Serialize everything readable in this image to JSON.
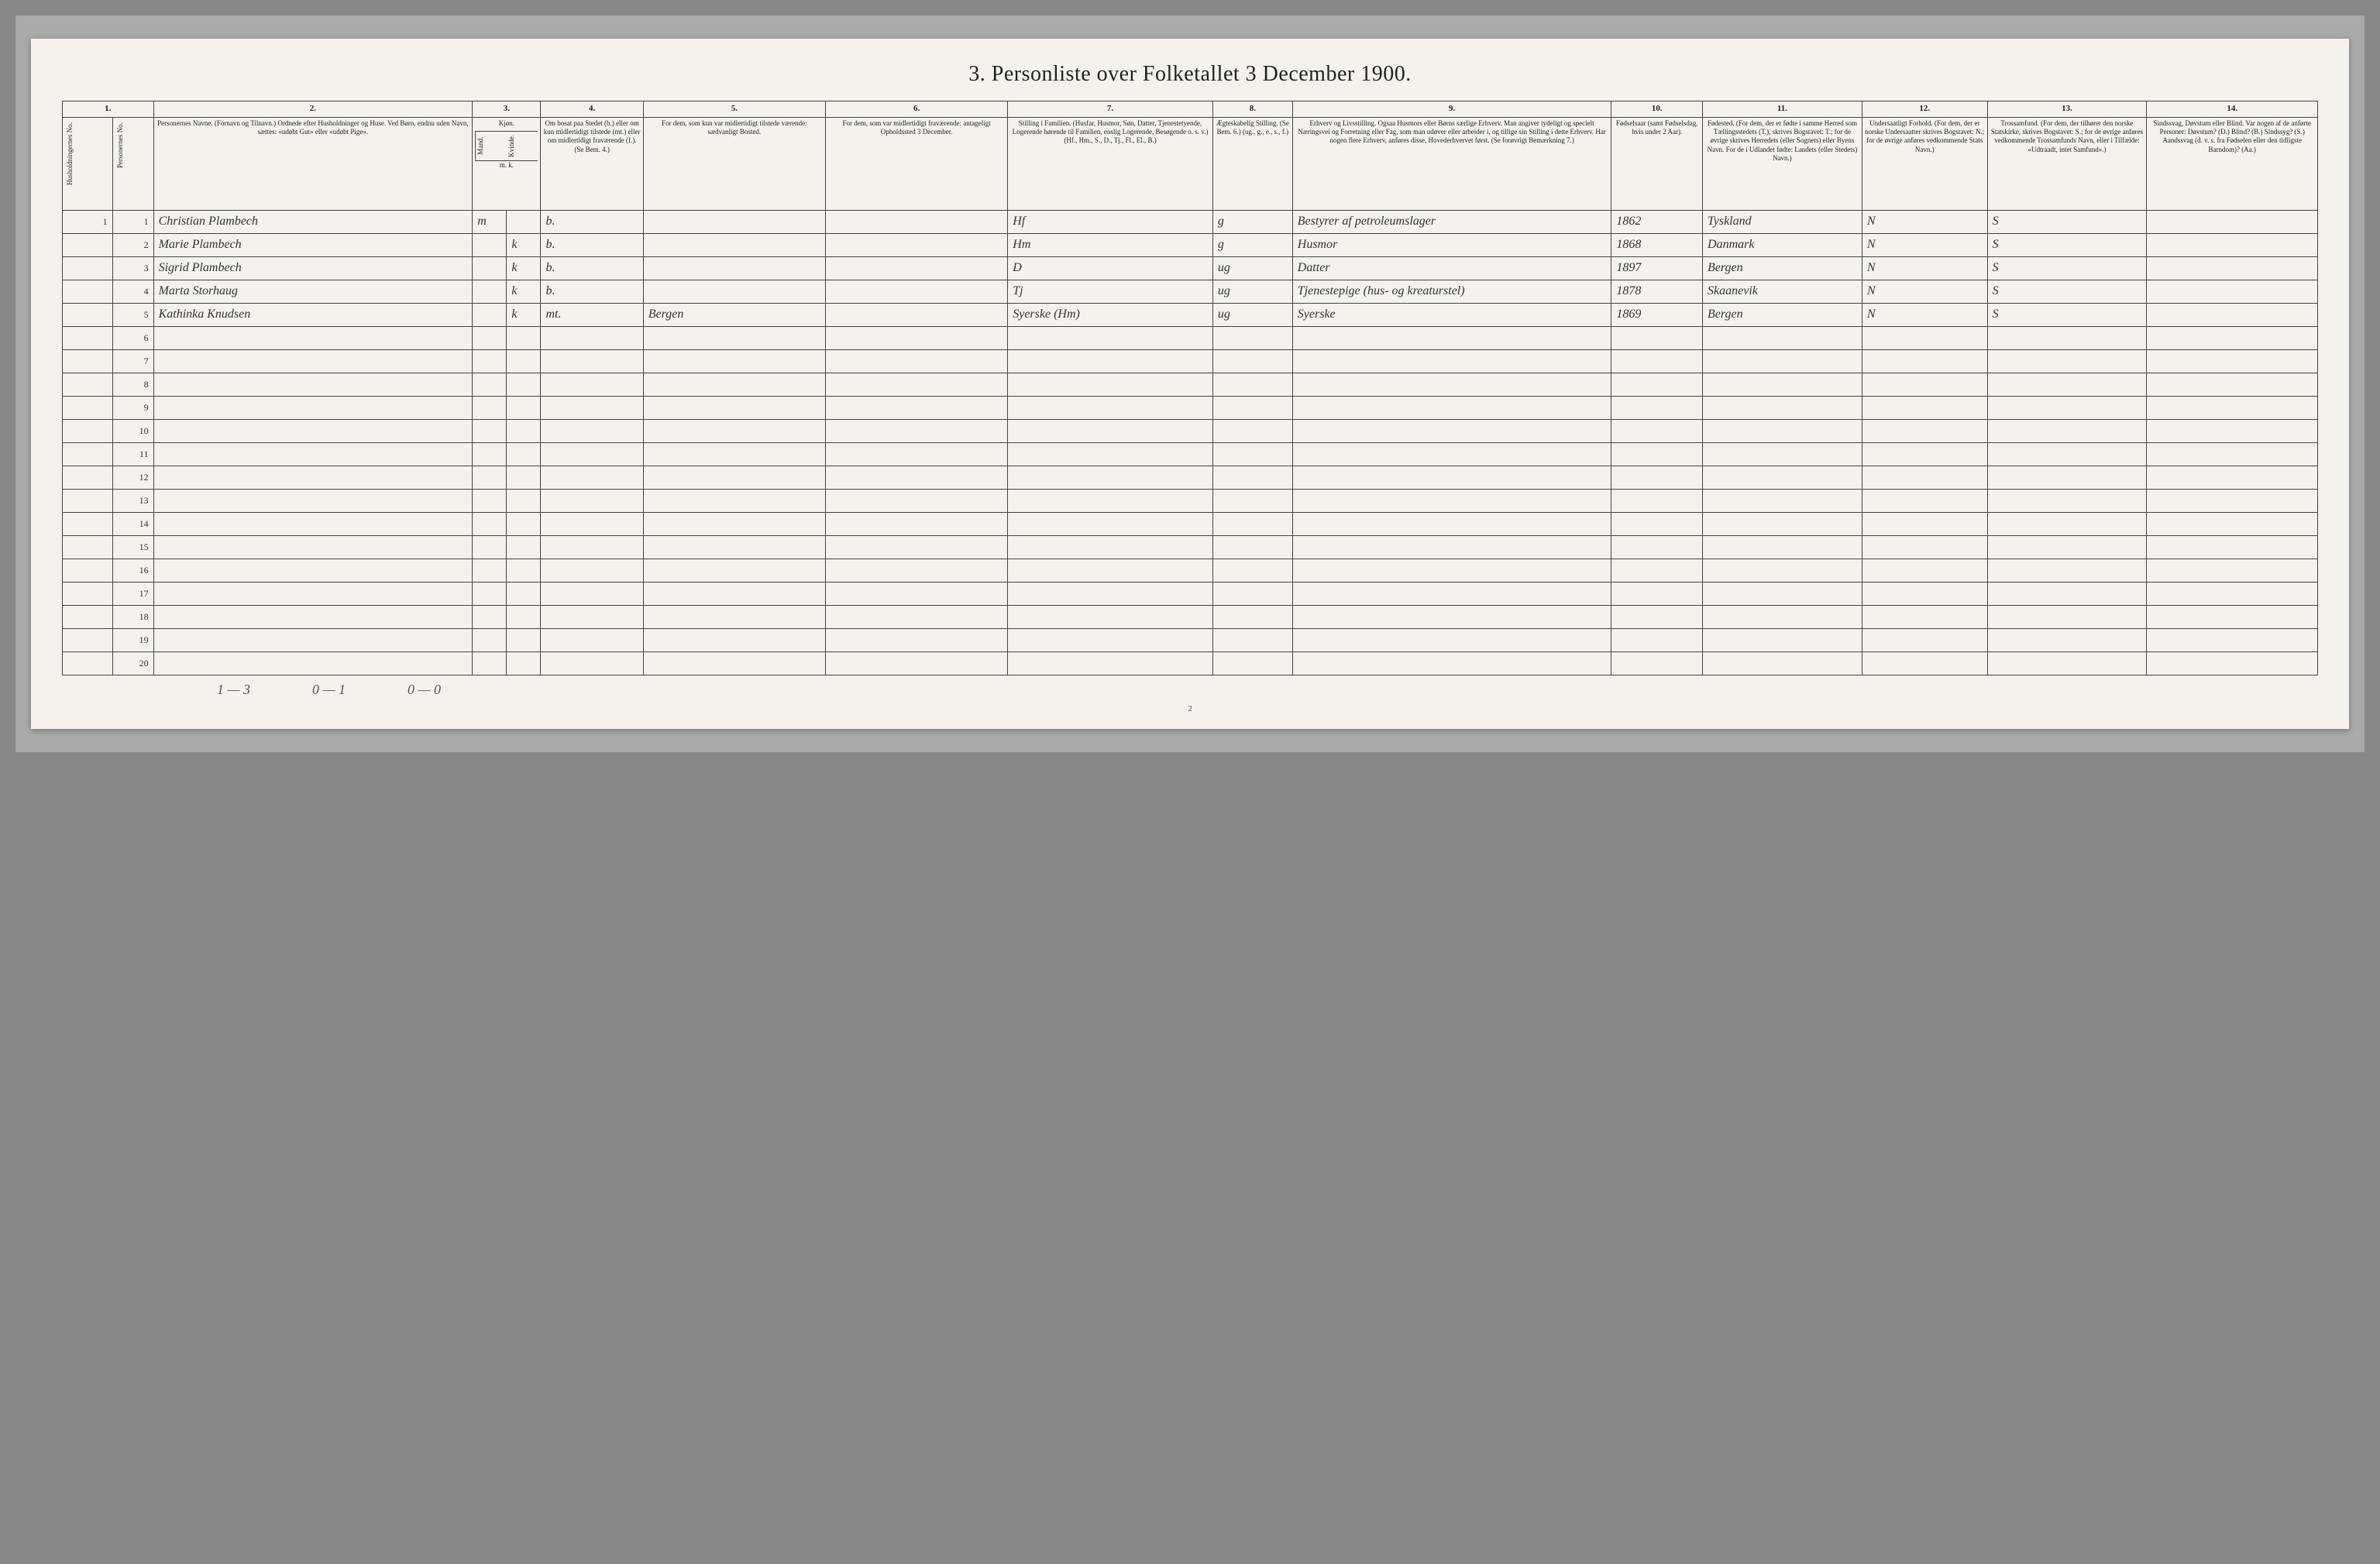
{
  "title": "3. Personliste over Folketallet 3 December 1900.",
  "columns": {
    "numbers": [
      "1.",
      "2.",
      "3.",
      "4.",
      "5.",
      "6.",
      "7.",
      "8.",
      "9.",
      "10.",
      "11.",
      "12.",
      "13.",
      "14."
    ],
    "headers": {
      "c1a": "Husholdningernes No.",
      "c1b": "Personernes No.",
      "c2": "Personernes Navne.\n(Fornavn og Tilnavn.)\nOrdnede efter Husholdninger og Huse.\nVed Børn, endnu uden Navn, sættes: «udøbt Gut» eller «udøbt Pige».",
      "c3": "Kjøn.",
      "c3a": "Mand.",
      "c3b": "Kvinde.",
      "c4": "Om bosat paa Stedet (b.) eller om kun midlertidigt tilstede (mt.) eller om midlertidigt fraværende (f.).\n(Se Bem. 4.)",
      "c5": "For dem, som kun var midlertidigt tilstede værende:\nsædvanligt Bosted.",
      "c6": "For dem, som var midlertidigt fraværende:\nantageligt Opholdssted 3 December.",
      "c7": "Stilling i Familien.\n(Husfar, Husmor, Søn, Datter, Tjenestetyende, Logerende hørende til Familien, enslig Logerende, Besøgende o. s. v.)\n(Hf., Hm., S., D., Tj., Fl., El., B.)",
      "c8": "Ægteskabelig Stilling.\n(Se Bem. 6.)\n(ug., g., e., s., f.)",
      "c9": "Erhverv og Livsstilling.\nOgsaa Husmors eller Børns særlige Erhverv.\nMan angiver tydeligt og specielt Næringsvei og Forretning eller Fag, som man udøver eller arbeider i, og tillige sin Stilling i dette Erhverv.\nHar nogen flere Erhverv, anføres disse, Hovederhvervet først.\n(Se forøvrigt Bemærkning 7.)",
      "c10": "Fødselsaar\n(samt Fødselsdag, hvis under 2 Aar).",
      "c11": "Fødested.\n(For dem, der er fødte i samme Herred som Tællingsstedets (T.), skrives Bogstavet: T.; for de øvrige skrives Herredets (eller Sognets) eller Byens Navn.\nFor de i Udlandet fødte: Landets (eller Stedets) Navn.)",
      "c12": "Undersaatligt Forhold.\n(For dem, der er norske Undersaatter skrives Bogstavet: N.; for de øvrige anføres vedkommende Stats Navn.)",
      "c13": "Trossamfund.\n(For dem, der tilhører den norske Statskirke, skrives Bogstavet: S.; for de øvrige anføres vedkommende Trossamfunds Navn, eller i Tilfælde: «Udtraadt, intet Samfund».)",
      "c14": "Sindssvag, Døvstum eller Blind.\nVar nogen af de anførte Personer:\nDøvstum? (D.)\nBlind? (B.)\nSindssyg? (S.)\nAandssvag (d. v. s. fra Fødselen eller den tidligste Barndom)? (Aa.)",
      "mk": "m. k."
    }
  },
  "rows": [
    {
      "hh": "1",
      "pn": "1",
      "name": "Christian Plambech",
      "sex_m": "m",
      "sex_k": "",
      "res": "b.",
      "c5": "",
      "c6": "",
      "fam": "Hf",
      "mar": "g",
      "occ": "Bestyrer af petroleumslager",
      "year": "1862",
      "birthplace": "Tyskland",
      "nat": "N",
      "rel": "S",
      "inf": ""
    },
    {
      "hh": "",
      "pn": "2",
      "name": "Marie Plambech",
      "sex_m": "",
      "sex_k": "k",
      "res": "b.",
      "c5": "",
      "c6": "",
      "fam": "Hm",
      "mar": "g",
      "occ": "Husmor",
      "year": "1868",
      "birthplace": "Danmark",
      "nat": "N",
      "rel": "S",
      "inf": ""
    },
    {
      "hh": "",
      "pn": "3",
      "name": "Sigrid Plambech",
      "sex_m": "",
      "sex_k": "k",
      "res": "b.",
      "c5": "",
      "c6": "",
      "fam": "D",
      "mar": "ug",
      "occ": "Datter",
      "year": "1897",
      "birthplace": "Bergen",
      "nat": "N",
      "rel": "S",
      "inf": ""
    },
    {
      "hh": "",
      "pn": "4",
      "name": "Marta Storhaug",
      "sex_m": "",
      "sex_k": "k",
      "res": "b.",
      "c5": "",
      "c6": "",
      "fam": "Tj",
      "mar": "ug",
      "occ": "Tjenestepige (hus- og kreaturstel)",
      "year": "1878",
      "birthplace": "Skaanevik",
      "nat": "N",
      "rel": "S",
      "inf": ""
    },
    {
      "hh": "",
      "pn": "5",
      "name": "Kathinka Knudsen",
      "sex_m": "",
      "sex_k": "k",
      "res": "mt.",
      "c5": "Bergen",
      "c6": "",
      "fam": "Syerske (Hm)",
      "mar": "ug",
      "occ": "Syerske",
      "year": "1869",
      "birthplace": "Bergen",
      "nat": "N",
      "rel": "S",
      "inf": ""
    }
  ],
  "emptyRowStart": 6,
  "emptyRowEnd": 20,
  "footer": {
    "a": "1 — 3",
    "b": "0 — 1",
    "c": "0 — 0"
  },
  "pageNumber": "2",
  "style": {
    "background": "#f5f2eb",
    "border": "#444",
    "text": "#222",
    "handwriting": "#333",
    "title_fontsize": 28,
    "header_fontsize": 9,
    "body_fontsize": 16
  }
}
